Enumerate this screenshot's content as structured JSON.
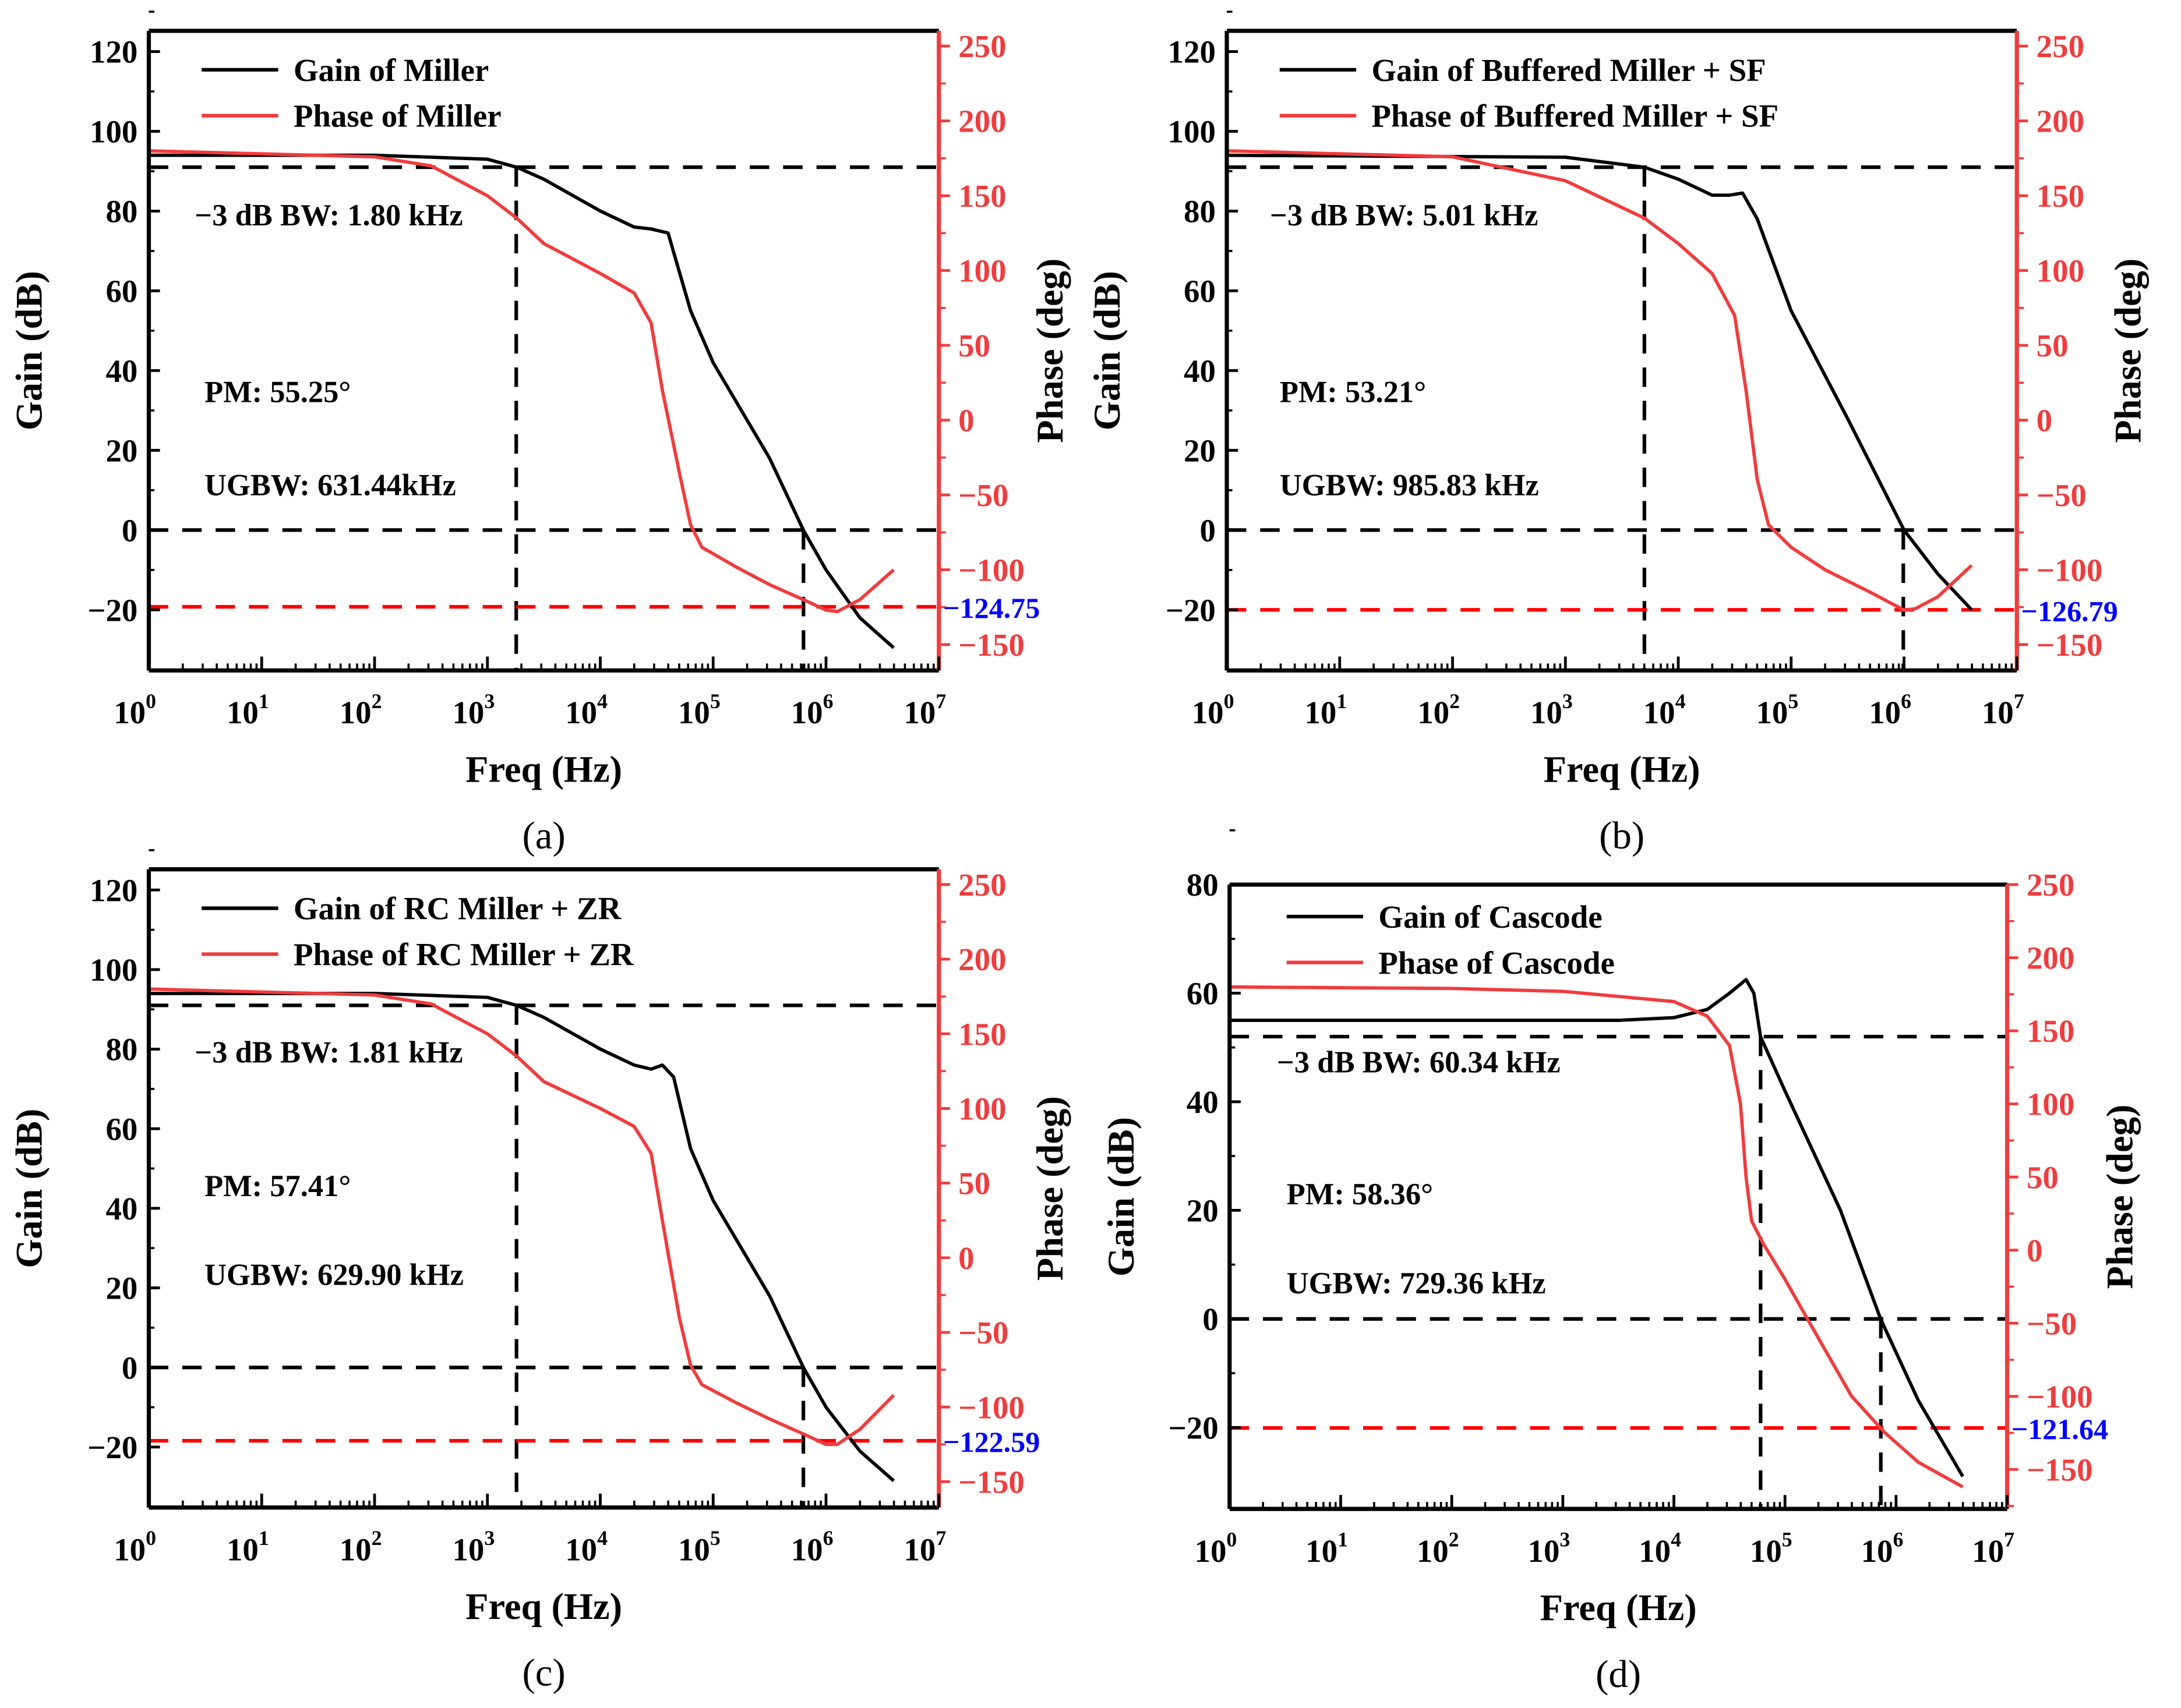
{
  "colors": {
    "gain": "#000000",
    "phase": "#f03c3c",
    "phase_ref": "#ff0000",
    "phase_value": "#0000ff"
  },
  "chart_data": [
    {
      "type": "line",
      "panel_label": "(a)",
      "xlabel": "Freq (Hz)",
      "ylabel": "Gain (dB)",
      "y2label": "Phase (deg)",
      "xscale": "log",
      "xlim_exp": [
        0,
        7
      ],
      "x_tick_exps": [
        0,
        1,
        2,
        3,
        4,
        5,
        6,
        7
      ],
      "ylim": [
        -35.2,
        125.2
      ],
      "y_ticks": [
        -20,
        0,
        20,
        40,
        60,
        80,
        100,
        120
      ],
      "y2lim": [
        -167.3,
        260.2
      ],
      "y2_ticks": [
        -150,
        -100,
        -50,
        0,
        50,
        100,
        150,
        200,
        250
      ],
      "legend": [
        "Gain of Miller",
        "Phase of Miller"
      ],
      "legend_position": "top-left",
      "annotations": {
        "bw": "−3 dB BW: 1.80 kHz",
        "pm": "PM: 55.25°",
        "ugbw": "UGBW: 631.44kHz",
        "phase_at_ugbw": "−124.75"
      },
      "markers": {
        "bw_hz": 1800,
        "gain_3db": 91,
        "ugbw_hz": 631440,
        "phase_ref": -124.75
      },
      "series": [
        {
          "name": "Gain of Miller",
          "axis": "left",
          "log_f": [
            0,
            2,
            3,
            3.26,
            3.5,
            4,
            4.3,
            4.45,
            4.6,
            4.8,
            5,
            5.5,
            5.8,
            6,
            6.3,
            6.6
          ],
          "values": [
            94,
            94,
            93,
            91,
            88,
            80,
            76,
            75.5,
            74.5,
            55,
            42,
            18,
            0,
            -10,
            -22,
            -29.5
          ]
        },
        {
          "name": "Phase of Miller",
          "axis": "right",
          "log_f": [
            0,
            2,
            2.5,
            3,
            3.26,
            3.5,
            4,
            4.3,
            4.45,
            4.55,
            4.7,
            4.8,
            4.9,
            5.2,
            5.5,
            5.8,
            6,
            6.1,
            6.3,
            6.6
          ],
          "values": [
            180,
            176,
            170,
            150,
            135,
            118,
            98,
            85,
            65,
            20,
            -35,
            -70,
            -85,
            -98,
            -110,
            -120,
            -127,
            -128,
            -120,
            -100
          ]
        }
      ]
    },
    {
      "type": "line",
      "panel_label": "(b)",
      "xlabel": "Freq (Hz)",
      "ylabel": "Gain (dB)",
      "y2label": "Phase (deg)",
      "xscale": "log",
      "xlim_exp": [
        0,
        7
      ],
      "x_tick_exps": [
        0,
        1,
        2,
        3,
        4,
        5,
        6,
        7
      ],
      "ylim": [
        -35.2,
        125.2
      ],
      "y_ticks": [
        -20,
        0,
        20,
        40,
        60,
        80,
        100,
        120
      ],
      "y2lim": [
        -167.3,
        260.2
      ],
      "y2_ticks": [
        -150,
        -100,
        -50,
        0,
        50,
        100,
        150,
        200,
        250
      ],
      "legend": [
        "Gain of Buffered Miller + SF",
        "Phase of Buffered Miller + SF"
      ],
      "legend_position": "top-left",
      "annotations": {
        "bw": "−3 dB BW: 5.01 kHz",
        "pm": "PM: 53.21°",
        "ugbw": "UGBW: 985.83 kHz",
        "phase_at_ugbw": "−126.79"
      },
      "markers": {
        "bw_hz": 5010,
        "gain_3db": 91,
        "ugbw_hz": 985830,
        "phase_ref": -126.79
      },
      "series": [
        {
          "name": "Gain of Buffered Miller + SF",
          "axis": "left",
          "log_f": [
            0,
            3,
            3.7,
            4,
            4.3,
            4.45,
            4.57,
            4.7,
            5,
            5.5,
            6,
            6.3,
            6.6
          ],
          "values": [
            94,
            93.5,
            91,
            88,
            84,
            84,
            84.5,
            78,
            55,
            28,
            0,
            -11,
            -20
          ]
        },
        {
          "name": "Phase of Buffered Miller + SF",
          "axis": "right",
          "log_f": [
            0,
            2,
            3,
            3.7,
            4,
            4.3,
            4.5,
            4.6,
            4.7,
            4.8,
            5,
            5.3,
            5.7,
            6,
            6.1,
            6.3,
            6.6
          ],
          "values": [
            180,
            176,
            160,
            135,
            118,
            98,
            70,
            20,
            -40,
            -70,
            -85,
            -100,
            -115,
            -127,
            -126,
            -118,
            -97
          ]
        }
      ]
    },
    {
      "type": "line",
      "panel_label": "(c)",
      "xlabel": "Freq (Hz)",
      "ylabel": "Gain (dB)",
      "y2label": "Phase (deg)",
      "xscale": "log",
      "xlim_exp": [
        0,
        7
      ],
      "x_tick_exps": [
        0,
        1,
        2,
        3,
        4,
        5,
        6,
        7
      ],
      "ylim": [
        -35.2,
        125.2
      ],
      "y_ticks": [
        -20,
        0,
        20,
        40,
        60,
        80,
        100,
        120
      ],
      "y2lim": [
        -167.3,
        260.2
      ],
      "y2_ticks": [
        -150,
        -100,
        -50,
        0,
        50,
        100,
        150,
        200,
        250
      ],
      "legend": [
        "Gain of RC Miller + ZR",
        "Phase of RC Miller + ZR"
      ],
      "legend_position": "top-left",
      "annotations": {
        "bw": "−3 dB BW: 1.81 kHz",
        "pm": "PM: 57.41°",
        "ugbw": "UGBW: 629.90 kHz",
        "phase_at_ugbw": "−122.59"
      },
      "markers": {
        "bw_hz": 1810,
        "gain_3db": 91,
        "ugbw_hz": 629900,
        "phase_ref": -122.59
      },
      "series": [
        {
          "name": "Gain of RC Miller + ZR",
          "axis": "left",
          "log_f": [
            0,
            2,
            3,
            3.26,
            3.5,
            4,
            4.3,
            4.45,
            4.55,
            4.65,
            4.8,
            5,
            5.5,
            5.8,
            6,
            6.3,
            6.6
          ],
          "values": [
            94,
            94,
            93,
            91,
            88,
            80,
            76,
            75,
            76,
            73,
            55,
            42,
            18,
            0,
            -10,
            -21,
            -28.5
          ]
        },
        {
          "name": "Phase of RC Miller + ZR",
          "axis": "right",
          "log_f": [
            0,
            2,
            2.5,
            3,
            3.26,
            3.5,
            4,
            4.3,
            4.45,
            4.55,
            4.7,
            4.8,
            4.9,
            5.2,
            5.5,
            5.8,
            6,
            6.1,
            6.3,
            6.6
          ],
          "values": [
            180,
            176,
            170,
            150,
            135,
            118,
            100,
            88,
            70,
            25,
            -40,
            -72,
            -85,
            -97,
            -108,
            -118,
            -125,
            -125,
            -115,
            -92
          ]
        }
      ]
    },
    {
      "type": "line",
      "panel_label": "(d)",
      "xlabel": "Freq (Hz)",
      "ylabel": "Gain (dB)",
      "y2label": "Phase (deg)",
      "xscale": "log",
      "xlim_exp": [
        0,
        7
      ],
      "x_tick_exps": [
        0,
        1,
        2,
        3,
        4,
        5,
        6,
        7
      ],
      "ylim": [
        -35,
        80
      ],
      "y_ticks": [
        -20,
        0,
        20,
        40,
        60,
        80
      ],
      "y2lim": [
        -177,
        250
      ],
      "y2_ticks": [
        -150,
        -100,
        -50,
        0,
        50,
        100,
        150,
        200,
        250
      ],
      "legend": [
        "Gain of Cascode",
        "Phase of Cascode"
      ],
      "legend_position": "top-left",
      "annotations": {
        "bw": "−3 dB BW: 60.34 kHz",
        "pm": "PM: 58.36°",
        "ugbw": "UGBW: 729.36 kHz",
        "phase_at_ugbw": "−121.64"
      },
      "markers": {
        "bw_hz": 60340,
        "gain_3db": 52,
        "ugbw_hz": 729360,
        "phase_ref": -121.64
      },
      "series": [
        {
          "name": "Gain of Cascode",
          "axis": "left",
          "log_f": [
            0,
            3.5,
            4,
            4.3,
            4.5,
            4.65,
            4.72,
            4.78,
            5,
            5.5,
            5.86,
            6.2,
            6.6
          ],
          "values": [
            55,
            55,
            55.5,
            57,
            60,
            62.5,
            60,
            52,
            42,
            20,
            0,
            -15,
            -29
          ]
        },
        {
          "name": "Phase of Cascode",
          "axis": "right",
          "log_f": [
            0,
            2,
            3,
            4,
            4.3,
            4.5,
            4.6,
            4.65,
            4.7,
            4.8,
            5,
            5.3,
            5.6,
            5.9,
            6.2,
            6.6
          ],
          "values": [
            180,
            179,
            177,
            170,
            160,
            140,
            100,
            50,
            20,
            5,
            -20,
            -60,
            -100,
            -125,
            -145,
            -162
          ]
        }
      ]
    }
  ]
}
